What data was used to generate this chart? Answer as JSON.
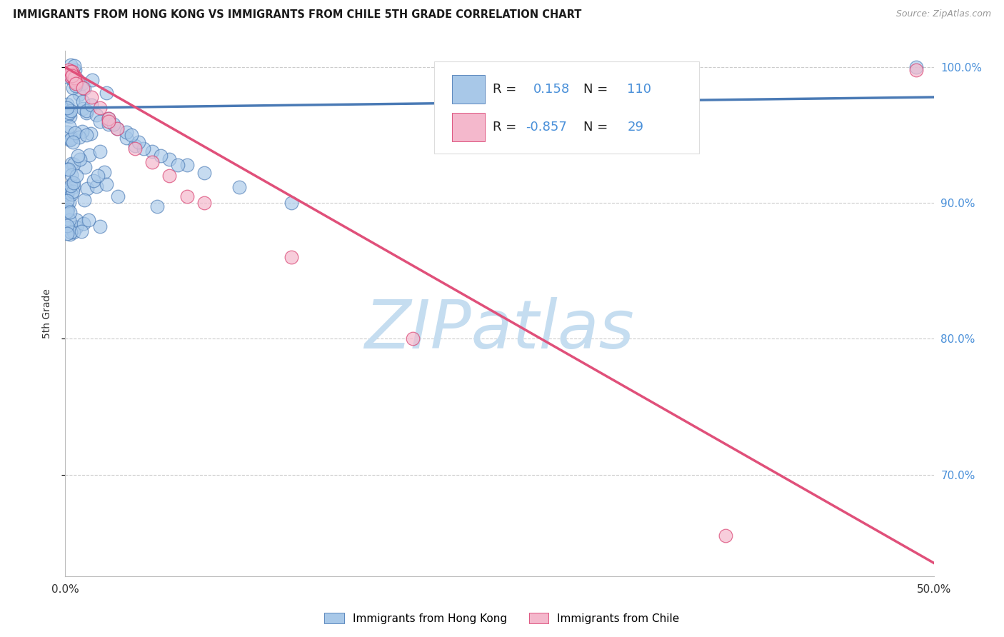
{
  "title": "IMMIGRANTS FROM HONG KONG VS IMMIGRANTS FROM CHILE 5TH GRADE CORRELATION CHART",
  "source": "Source: ZipAtlas.com",
  "ylabel": "5th Grade",
  "xmin": 0.0,
  "xmax": 0.5,
  "ymin": 0.625,
  "ymax": 1.012,
  "ytick_vals": [
    1.0,
    0.9,
    0.8,
    0.7
  ],
  "ytick_labels": [
    "100.0%",
    "90.0%",
    "80.0%",
    "70.0%"
  ],
  "xtick_vals": [
    0.0,
    0.1,
    0.2,
    0.3,
    0.4,
    0.5
  ],
  "xtick_labels": [
    "0.0%",
    "",
    "",
    "",
    "",
    "50.0%"
  ],
  "hk_R": 0.158,
  "hk_N": 110,
  "chile_R": -0.857,
  "chile_N": 29,
  "hk_face_color": "#a8c8e8",
  "hk_edge_color": "#4a7ab5",
  "hk_line_color": "#4a7ab5",
  "chile_face_color": "#f4b8cc",
  "chile_edge_color": "#d94070",
  "chile_line_color": "#e0507a",
  "watermark": "ZIPatlas",
  "watermark_color": "#c5ddf0",
  "legend_num_color": "#4a90d9",
  "right_axis_color": "#4a90d9"
}
